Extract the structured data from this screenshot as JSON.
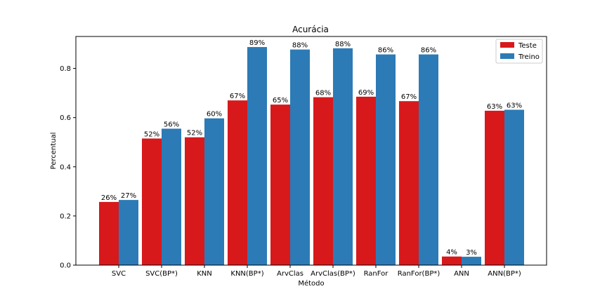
{
  "chart_data": {
    "type": "bar",
    "title": "Acurácia",
    "xlabel": "Método",
    "ylabel": "Percentual",
    "categories": [
      "SVC",
      "SVC(BP*)",
      "KNN",
      "KNN(BP*)",
      "ArvClas",
      "ArvClas(BP*)",
      "RanFor",
      "RanFor(BP*)",
      "ANN",
      "ANN(BP*)"
    ],
    "series": [
      {
        "name": "Teste",
        "color": "#d7191c",
        "values": [
          0.257,
          0.515,
          0.52,
          0.67,
          0.653,
          0.683,
          0.685,
          0.667,
          0.035,
          0.628
        ],
        "labels": [
          "26%",
          "52%",
          "52%",
          "67%",
          "65%",
          "68%",
          "69%",
          "67%",
          "4%",
          "63%"
        ]
      },
      {
        "name": "Treino",
        "color": "#2c7bb6",
        "values": [
          0.265,
          0.555,
          0.597,
          0.887,
          0.877,
          0.882,
          0.857,
          0.857,
          0.034,
          0.632
        ],
        "labels": [
          "27%",
          "56%",
          "60%",
          "89%",
          "88%",
          "88%",
          "86%",
          "86%",
          "3%",
          "63%"
        ]
      }
    ],
    "ylim": [
      0,
      0.93
    ],
    "yticks": [
      0.0,
      0.2,
      0.4,
      0.6,
      0.8
    ],
    "ytick_labels": [
      "0.0",
      "0.2",
      "0.4",
      "0.6",
      "0.8"
    ],
    "grid": false,
    "legend_position": "top-right"
  }
}
